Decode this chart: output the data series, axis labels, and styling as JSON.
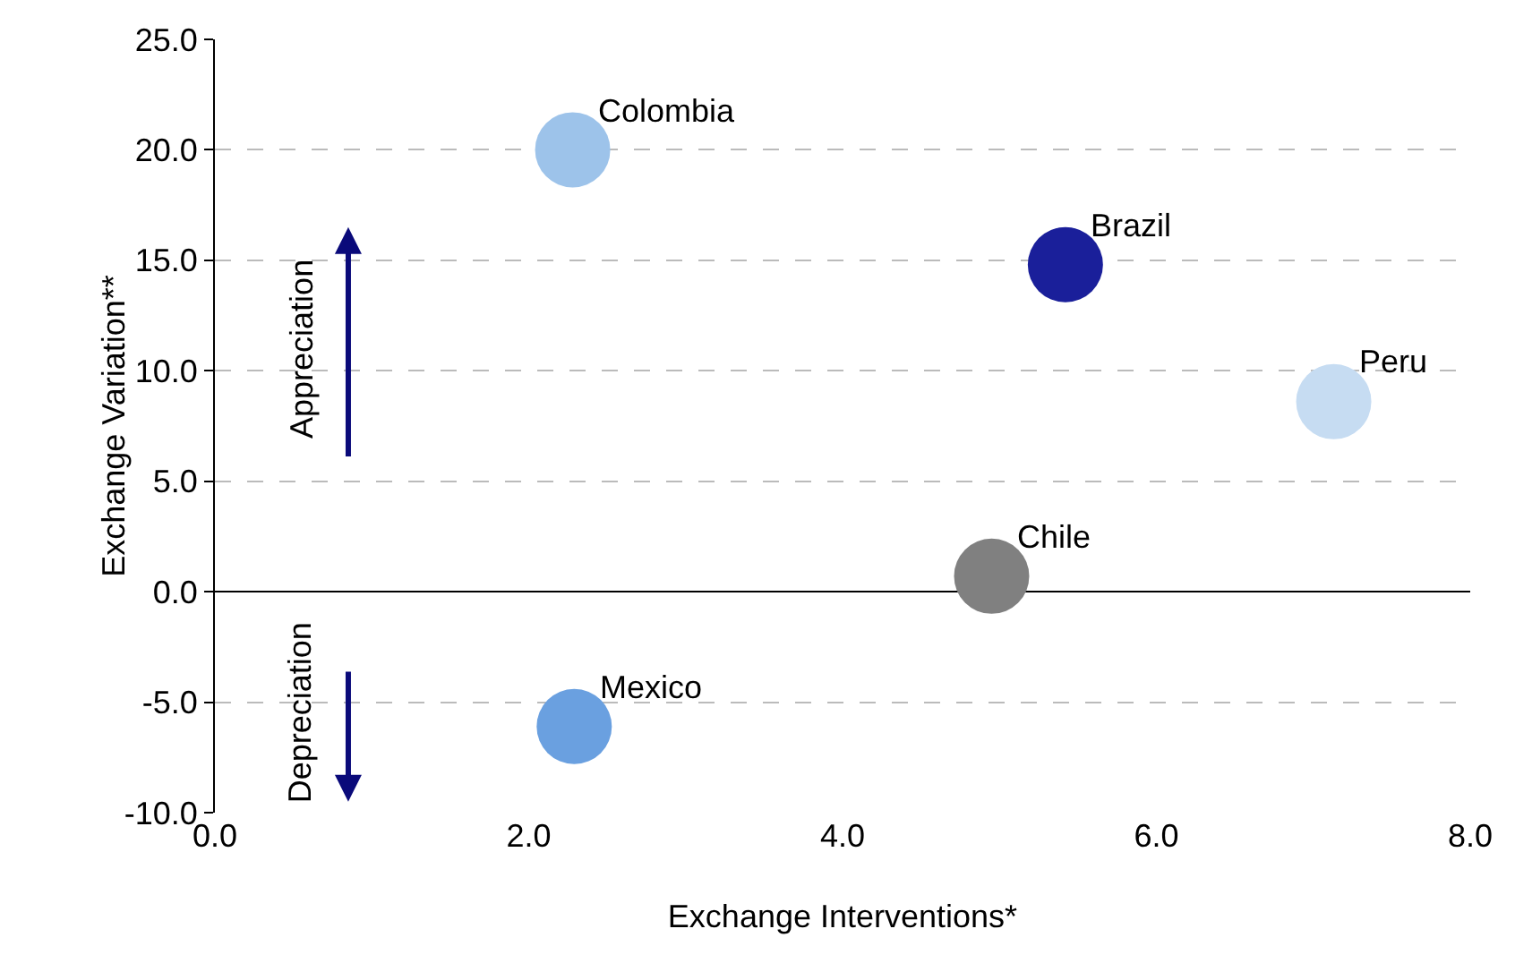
{
  "chart_data": {
    "type": "scatter",
    "xlabel": "Exchange Interventions*",
    "ylabel": "Exchange Variation**",
    "x": [
      2.28,
      5.42,
      7.13,
      4.95,
      2.29
    ],
    "values": [
      20.0,
      14.8,
      8.6,
      0.7,
      -6.1
    ],
    "colors": [
      "#9dc3ea",
      "#1a1f9a",
      "#c6dcf2",
      "#808080",
      "#6aa0e0"
    ],
    "annotations": [
      {
        "text": "Colombia",
        "x": 2.28,
        "y": 20.0
      },
      {
        "text": "Brazil",
        "x": 5.42,
        "y": 14.8
      },
      {
        "text": "Peru",
        "x": 7.13,
        "y": 8.6
      },
      {
        "text": "Chile",
        "x": 4.95,
        "y": 0.7
      },
      {
        "text": "Mexico",
        "x": 2.29,
        "y": -6.1
      },
      "Appreciation",
      "Depreciation"
    ],
    "xlim": [
      0,
      8
    ],
    "xticks": [
      {
        "value": 0,
        "label": "0.0"
      },
      {
        "value": 2,
        "label": "2.0"
      },
      {
        "value": 4,
        "label": "4.0"
      },
      {
        "value": 6,
        "label": "6.0"
      },
      {
        "value": 8,
        "label": "8.0"
      }
    ],
    "ylim": [
      -10,
      25
    ],
    "yticks": [
      {
        "value": -10,
        "label": "-10.0"
      },
      {
        "value": -5,
        "label": "-5.0"
      },
      {
        "value": 0,
        "label": "0.0"
      },
      {
        "value": 5,
        "label": "5.0"
      },
      {
        "value": 10,
        "label": "10.0"
      },
      {
        "value": 15,
        "label": "15.0"
      },
      {
        "value": 20,
        "label": "20.0"
      },
      {
        "value": 25,
        "label": "25.0"
      }
    ],
    "grid": "y",
    "marker": "circle"
  }
}
